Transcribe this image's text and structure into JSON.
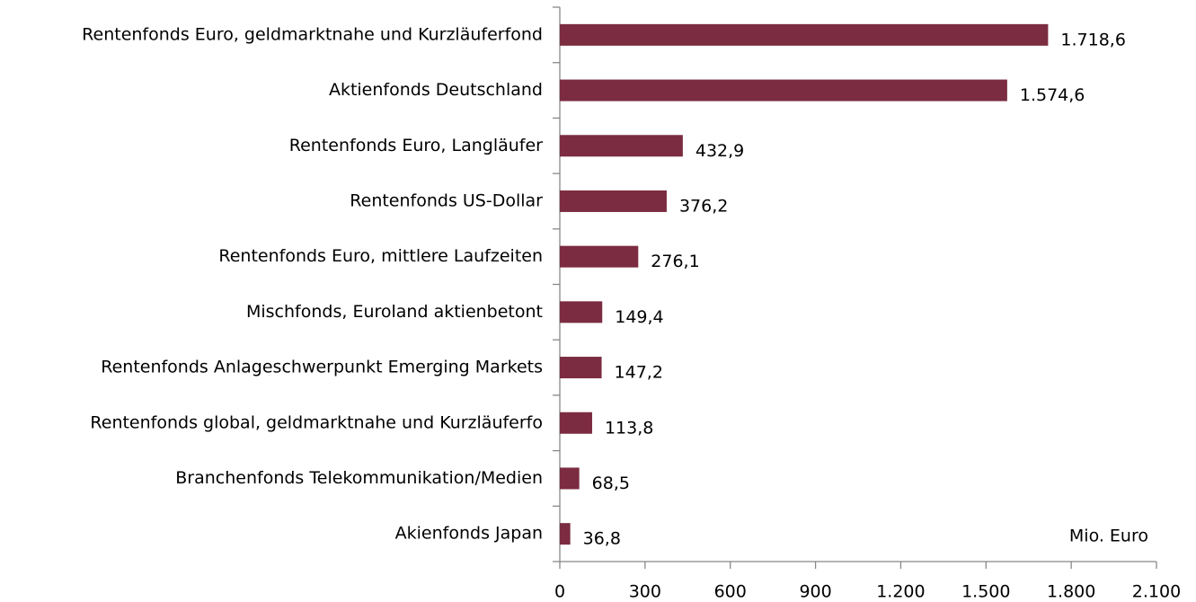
{
  "chart_data": {
    "type": "barh",
    "categories": [
      "Rentenfonds Euro, geldmarktnahe und Kurzläuferfond",
      "Aktienfonds Deutschland",
      "Rentenfonds Euro, Langläufer",
      "Rentenfonds US-Dollar",
      "Rentenfonds Euro, mittlere Laufzeiten",
      "Mischfonds, Euroland aktienbetont",
      "Rentenfonds Anlageschwerpunkt  Emerging Markets",
      "Rentenfonds global, geldmarktnahe und Kurzläuferfo",
      "Branchenfonds  Telekommunikation/Medien",
      "Akienfonds Japan"
    ],
    "values": [
      1718.6,
      1574.6,
      432.9,
      376.2,
      276.1,
      149.4,
      147.2,
      113.8,
      68.5,
      36.8
    ],
    "value_labels": [
      "1.718,6",
      "1.574,6",
      "432,9",
      "376,2",
      "276,1",
      "149,4",
      "147,2",
      "113,8",
      "68,5",
      "36,8"
    ],
    "color": "#7b2c40",
    "xlim": [
      0,
      2100
    ],
    "xticks": [
      0,
      300,
      600,
      900,
      {
        "value": 1200,
        "label": "1.200"
      },
      {
        "value": 1500,
        "label": "1.500"
      },
      {
        "value": 1800,
        "label": "1.800"
      },
      {
        "value": 2100,
        "label": "2.100"
      }
    ],
    "annotation": "Mio. Euro"
  }
}
